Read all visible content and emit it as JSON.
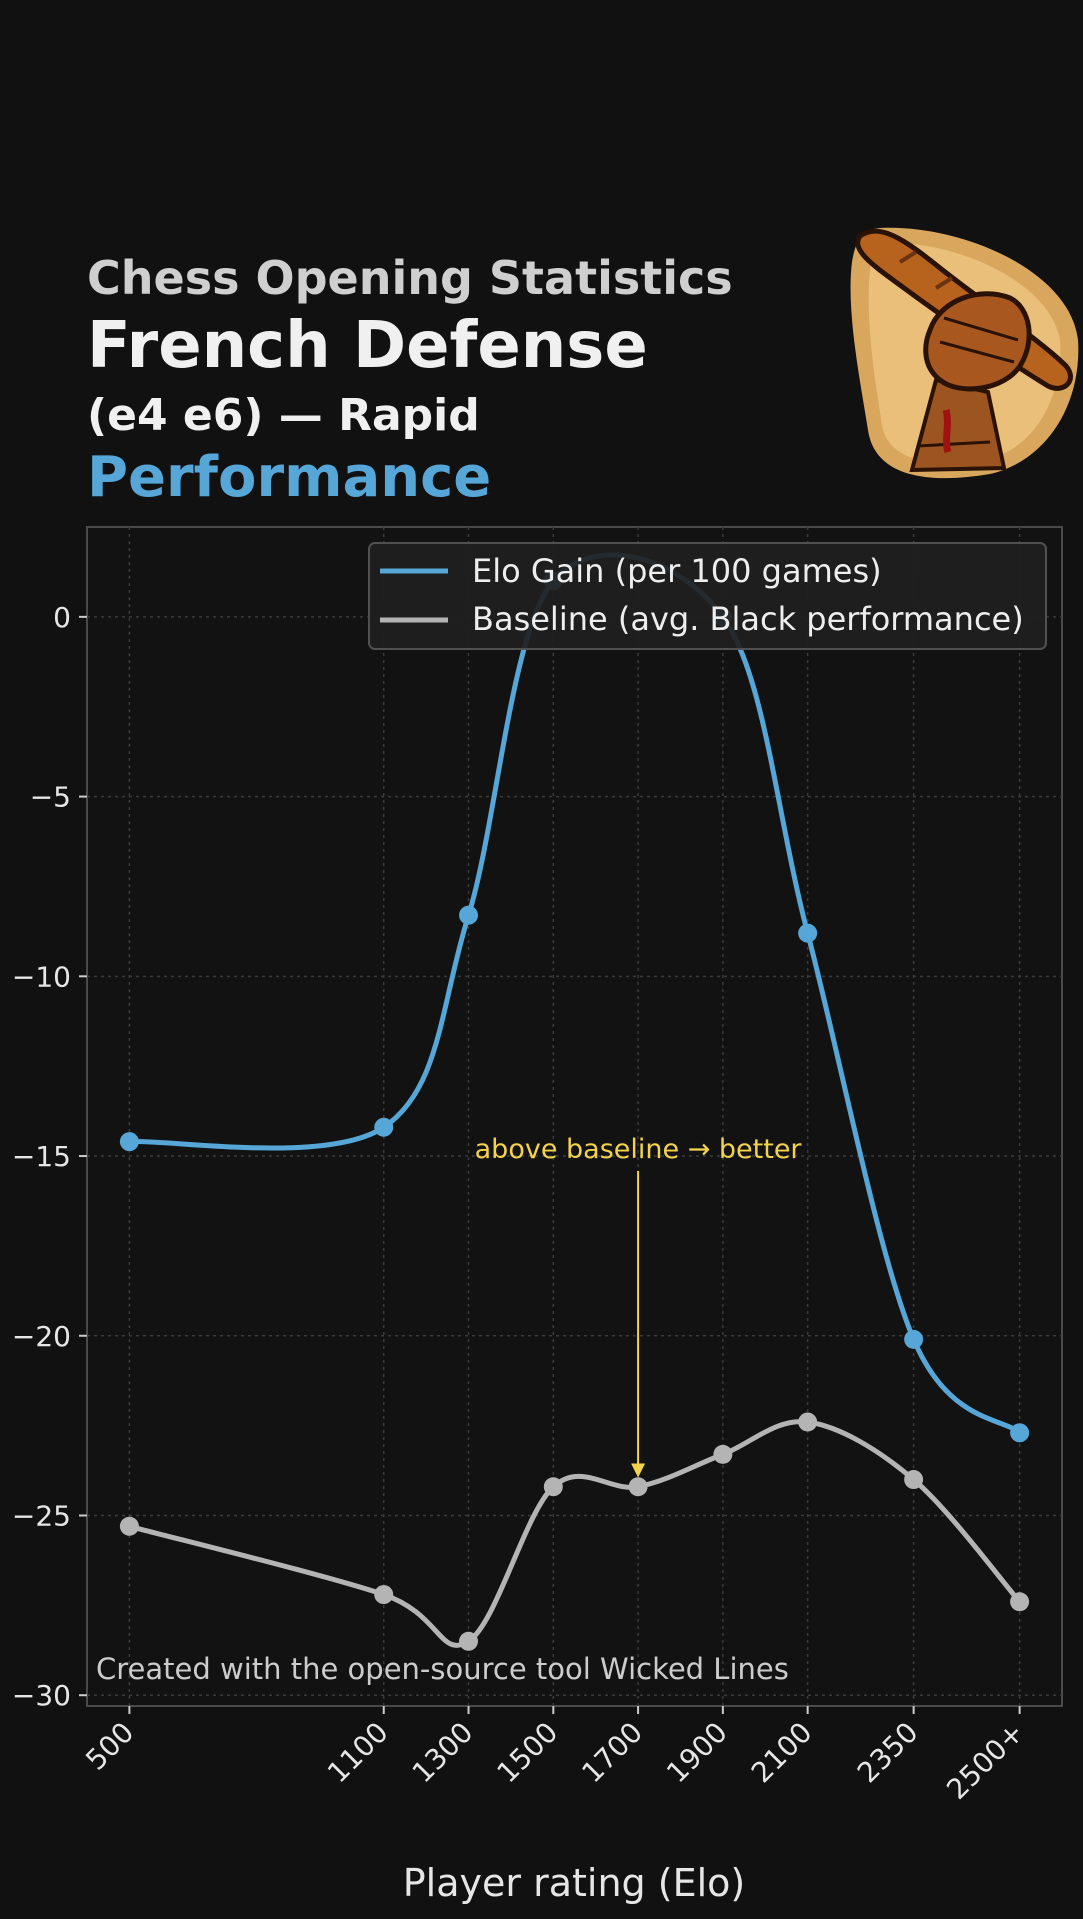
{
  "header": {
    "supertitle": "Chess Opening Statistics",
    "title": "French Defense",
    "subtitle": "(e4 e6) — Rapid",
    "metric": "Performance"
  },
  "logo": {
    "icon": "fist-holding-baguette-icon"
  },
  "colors": {
    "background": "#111111",
    "plot_bg": "#121212",
    "elo_series": "#56a6d8",
    "baseline_series": "#b4b4b4",
    "annotation": "#f2d34b",
    "grid": "#3a3a3a"
  },
  "chart_data": {
    "type": "line",
    "xlabel": "Player rating (Elo)",
    "ylabel": "",
    "x_positions": [
      500,
      1100,
      1300,
      1500,
      1700,
      1900,
      2100,
      2350,
      2600
    ],
    "categories": [
      "500",
      "1100",
      "1300",
      "1500",
      "1700",
      "1900",
      "2100",
      "2350",
      "2500+"
    ],
    "xlim": [
      400,
      2700
    ],
    "ylim": [
      -30.3,
      2.5
    ],
    "yticks": [
      0,
      -5,
      -10,
      -15,
      -20,
      -25,
      -30
    ],
    "ytick_labels": [
      "0",
      "−5",
      "−10",
      "−15",
      "−20",
      "−25",
      "−30"
    ],
    "grid": true,
    "legend_position": "upper right",
    "series": [
      {
        "name": "Elo Gain (per 100 games)",
        "values": [
          -14.6,
          -14.2,
          -8.3,
          1.0,
          null,
          0.0,
          -8.8,
          -20.1,
          -22.7
        ]
      },
      {
        "name": "Baseline (avg. Black performance)",
        "values": [
          -25.3,
          -27.2,
          -28.5,
          -24.2,
          -24.2,
          -23.3,
          -22.4,
          -24.0,
          -27.4
        ]
      }
    ],
    "annotation": {
      "text": "above baseline → better",
      "x": 1700,
      "arrow_to": -24.0,
      "text_y": -14.8
    },
    "credit": "Created with the open-source tool Wicked Lines"
  }
}
